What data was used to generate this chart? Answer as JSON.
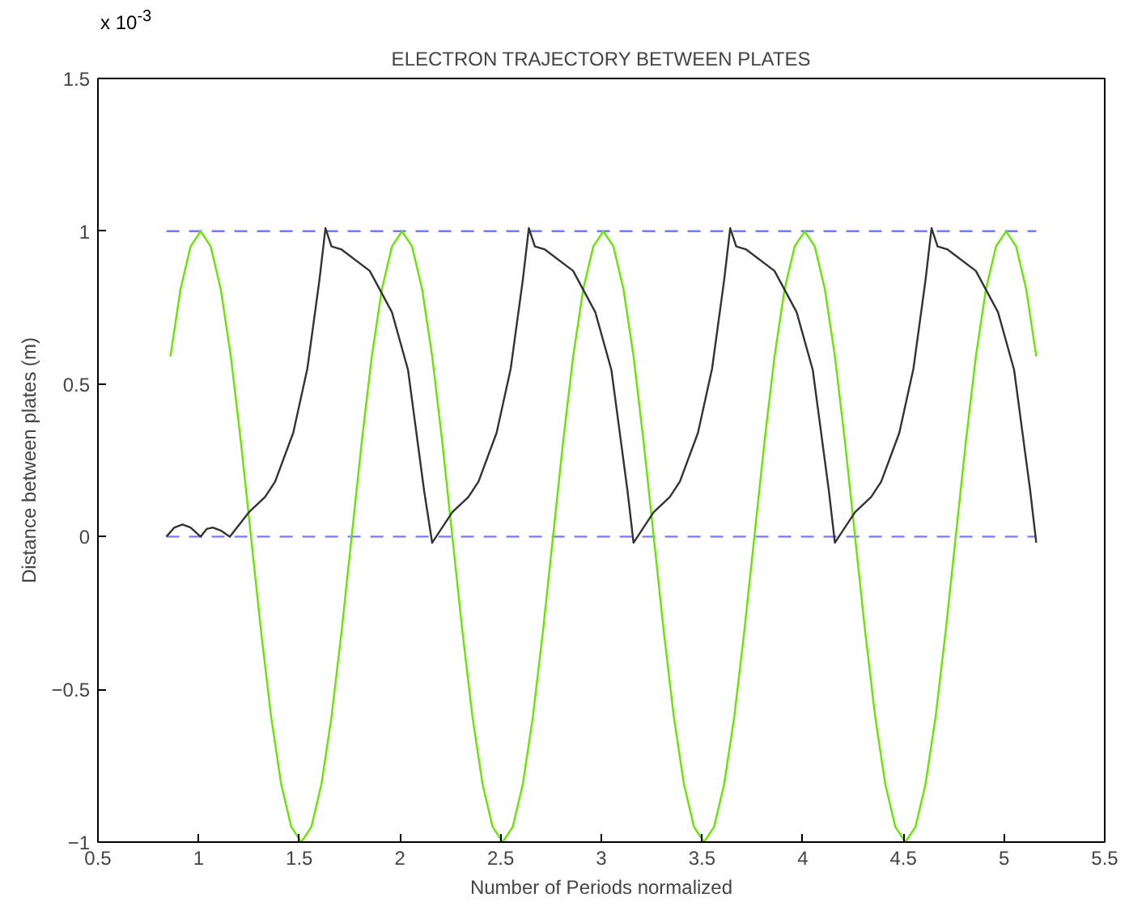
{
  "chart_data": {
    "type": "line",
    "title": "ELECTRON TRAJECTORY BETWEEN PLATES",
    "xlabel": "Number of Periods normalized",
    "ylabel": "Distance between plates (m)",
    "annotations": [
      "x 10$^{-3}$"
    ],
    "xlim": [
      0.5,
      5.5
    ],
    "xticks": [
      0.5,
      1,
      1.5,
      2,
      2.5,
      3,
      3.5,
      4,
      4.5,
      5,
      5.5
    ],
    "ylim": [
      -1,
      1.5
    ],
    "yticks": [
      {
        "value": -1,
        "label": "−1"
      },
      {
        "value": -0.5,
        "label": "−0.5"
      },
      0,
      0.5,
      1,
      1.5
    ],
    "series": [
      {
        "color": "#7777ff",
        "line_style": "dashed",
        "x": [
          0.84,
          5.16
        ],
        "values": [
          1,
          1
        ]
      },
      {
        "color": "#7777ff",
        "line_style": "dashed",
        "x": [
          0.84,
          5.16
        ],
        "values": [
          0,
          0
        ]
      },
      {
        "color": "#66e600",
        "line_style": "solid",
        "x": [
          0.86,
          0.91,
          0.96,
          1.01,
          1.06,
          1.11,
          1.16,
          1.21,
          1.26,
          1.31,
          1.36,
          1.41,
          1.46,
          1.51,
          1.56,
          1.61,
          1.66,
          1.71,
          1.76,
          1.81,
          1.86,
          1.91,
          1.96,
          2.01,
          2.06,
          2.11,
          2.16,
          2.21,
          2.26,
          2.31,
          2.36,
          2.41,
          2.46,
          2.51,
          2.56,
          2.61,
          2.66,
          2.71,
          2.76,
          2.81,
          2.86,
          2.91,
          2.96,
          3.01,
          3.06,
          3.11,
          3.16,
          3.21,
          3.26,
          3.31,
          3.36,
          3.41,
          3.46,
          3.51,
          3.56,
          3.61,
          3.66,
          3.71,
          3.76,
          3.81,
          3.86,
          3.91,
          3.96,
          4.01,
          4.06,
          4.11,
          4.16,
          4.21,
          4.26,
          4.31,
          4.36,
          4.41,
          4.46,
          4.51,
          4.56,
          4.61,
          4.66,
          4.71,
          4.76,
          4.81,
          4.86,
          4.91,
          4.96,
          5.01,
          5.06,
          5.11,
          5.16
        ],
        "values": [
          0.59,
          0.81,
          0.95,
          1,
          0.95,
          0.81,
          0.59,
          0.31,
          0,
          -0.31,
          -0.59,
          -0.81,
          -0.95,
          -1,
          -0.95,
          -0.81,
          -0.59,
          -0.31,
          0,
          0.31,
          0.59,
          0.81,
          0.95,
          1,
          0.95,
          0.81,
          0.59,
          0.31,
          0,
          -0.31,
          -0.59,
          -0.81,
          -0.95,
          -1,
          -0.95,
          -0.81,
          -0.59,
          -0.31,
          0,
          0.31,
          0.59,
          0.81,
          0.95,
          1,
          0.95,
          0.81,
          0.59,
          0.31,
          0,
          -0.31,
          -0.59,
          -0.81,
          -0.95,
          -1,
          -0.95,
          -0.81,
          -0.59,
          -0.31,
          0,
          0.31,
          0.59,
          0.81,
          0.95,
          1,
          0.95,
          0.81,
          0.59,
          0.31,
          0,
          -0.31,
          -0.59,
          -0.81,
          -0.95,
          -1,
          -0.95,
          -0.81,
          -0.59,
          -0.31,
          0,
          0.31,
          0.59,
          0.81,
          0.95,
          1,
          0.95,
          0.81,
          0.59
        ]
      },
      {
        "color": "#333333",
        "line_style": "solid",
        "x": [
          0.84,
          0.88,
          0.92,
          0.96,
          1.01,
          1.04,
          1.07,
          1.11,
          1.155,
          1.25,
          1.33,
          1.38,
          1.47,
          1.54,
          1.6,
          1.63,
          1.66,
          1.71,
          1.85,
          1.96,
          2.04,
          2.12,
          2.16,
          2.26,
          2.34,
          2.39,
          2.48,
          2.55,
          2.61,
          2.64,
          2.67,
          2.72,
          2.86,
          2.97,
          3.05,
          3.13,
          3.16,
          3.26,
          3.34,
          3.39,
          3.48,
          3.55,
          3.61,
          3.64,
          3.67,
          3.72,
          3.86,
          3.97,
          4.05,
          4.13,
          4.16,
          4.26,
          4.34,
          4.39,
          4.48,
          4.55,
          4.61,
          4.64,
          4.67,
          4.72,
          4.86,
          4.97,
          5.05,
          5.13,
          5.16
        ],
        "values": [
          0,
          0.03,
          0.04,
          0.03,
          0,
          0.025,
          0.03,
          0.02,
          0,
          0.08,
          0.13,
          0.18,
          0.34,
          0.55,
          0.84,
          1.01,
          0.95,
          0.94,
          0.87,
          0.735,
          0.546,
          0.15,
          -0.02,
          0.08,
          0.13,
          0.18,
          0.34,
          0.55,
          0.84,
          1.01,
          0.95,
          0.94,
          0.87,
          0.735,
          0.546,
          0.15,
          -0.02,
          0.08,
          0.13,
          0.18,
          0.34,
          0.55,
          0.84,
          1.01,
          0.95,
          0.94,
          0.87,
          0.735,
          0.546,
          0.15,
          -0.02,
          0.08,
          0.13,
          0.18,
          0.34,
          0.55,
          0.84,
          1.01,
          0.95,
          0.94,
          0.87,
          0.735,
          0.546,
          0.15,
          -0.02
        ]
      }
    ]
  }
}
